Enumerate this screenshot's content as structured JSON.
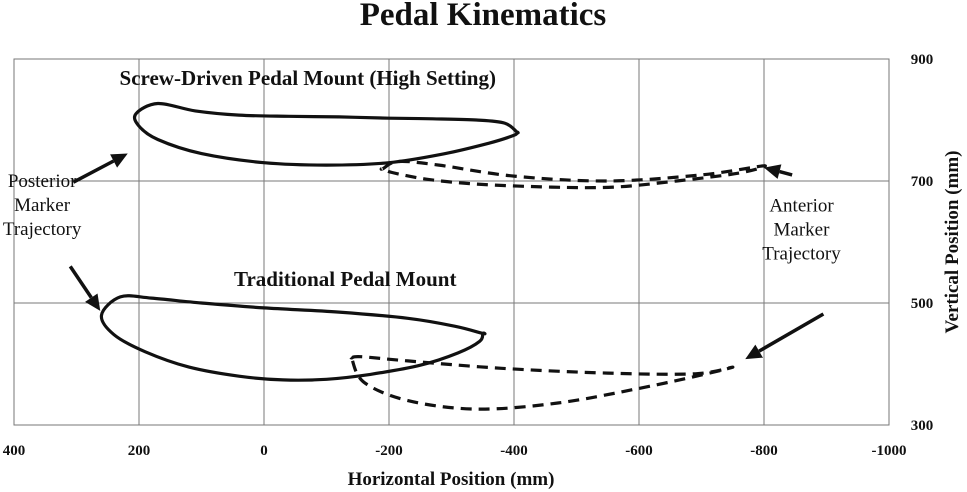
{
  "chart_data": {
    "type": "line",
    "title": "Pedal Kinematics",
    "xlabel": "Horizontal Position (mm)",
    "ylabel": "Vertical Position (mm)",
    "xlim": [
      400,
      -1000
    ],
    "ylim": [
      300,
      900
    ],
    "x_ticks": [
      400,
      200,
      0,
      -200,
      -400,
      -600,
      -800,
      -1000
    ],
    "y_ticks": [
      300,
      500,
      700,
      900
    ],
    "x_tick_labels": [
      "400",
      "200",
      "0",
      "-200",
      "-400",
      "-600",
      "-800",
      "-1000"
    ],
    "y_tick_labels": [
      "300",
      "500",
      "700",
      "900"
    ],
    "grid": true,
    "y_axis_position": "right",
    "series_labels": [
      {
        "text": "Screw-Driven Pedal Mount (High Setting)",
        "x": -70,
        "y": 857
      },
      {
        "text": "Traditional Pedal Mount",
        "x": -130,
        "y": 528
      }
    ],
    "annotations": [
      {
        "lines": [
          "Posterior",
          "Marker",
          "Trajectory"
        ],
        "x": 355,
        "y": 690
      },
      {
        "lines": [
          "Anterior",
          "Marker",
          "Trajectory"
        ],
        "x": -860,
        "y": 650
      }
    ],
    "arrows": [
      {
        "from": [
          305,
          698
        ],
        "to": [
          218,
          745
        ]
      },
      {
        "from": [
          310,
          560
        ],
        "to": [
          262,
          487
        ]
      },
      {
        "from": [
          -845,
          710
        ],
        "to": [
          -800,
          722
        ]
      },
      {
        "from": [
          -895,
          482
        ],
        "to": [
          -770,
          408
        ]
      }
    ],
    "series": [
      {
        "setting": "screw-driven",
        "marker": "posterior",
        "style": "solid",
        "x": [
          -405,
          -385,
          -340,
          -270,
          -200,
          -120,
          -40,
          40,
          110,
          170,
          205,
          200,
          170,
          100,
          0,
          -100,
          -200,
          -290,
          -360,
          -400,
          -405
        ],
        "y": [
          780,
          795,
          800,
          802,
          803,
          805,
          806,
          808,
          815,
          827,
          810,
          790,
          768,
          745,
          730,
          726,
          730,
          745,
          762,
          775,
          780
        ]
      },
      {
        "setting": "screw-driven",
        "marker": "anterior",
        "style": "dashed",
        "x": [
          -190,
          -215,
          -280,
          -400,
          -550,
          -700,
          -800,
          -760,
          -660,
          -560,
          -460,
          -340,
          -260,
          -205,
          -190
        ],
        "y": [
          720,
          732,
          726,
          708,
          700,
          710,
          725,
          713,
          700,
          690,
          690,
          695,
          703,
          714,
          720
        ]
      },
      {
        "setting": "traditional",
        "marker": "posterior",
        "style": "solid",
        "x": [
          -350,
          -305,
          -230,
          -120,
          0,
          100,
          180,
          230,
          260,
          240,
          190,
          120,
          40,
          -30,
          -100,
          -170,
          -250,
          -310,
          -345,
          -350
        ],
        "y": [
          450,
          462,
          475,
          485,
          492,
          500,
          508,
          510,
          480,
          448,
          420,
          395,
          380,
          374,
          375,
          383,
          398,
          418,
          437,
          450
        ]
      },
      {
        "setting": "traditional",
        "marker": "anterior",
        "style": "dashed",
        "x": [
          -140,
          -155,
          -230,
          -380,
          -550,
          -690,
          -750,
          -700,
          -600,
          -470,
          -340,
          -230,
          -160,
          -140
        ],
        "y": [
          410,
          412,
          405,
          393,
          385,
          384,
          395,
          382,
          360,
          336,
          326,
          340,
          370,
          410
        ]
      }
    ]
  }
}
